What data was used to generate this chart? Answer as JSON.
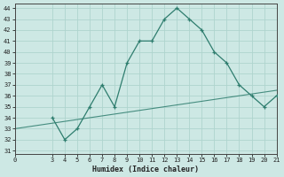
{
  "main_x": [
    3,
    4,
    5,
    6,
    7,
    8,
    9,
    10,
    11,
    12,
    13,
    14,
    15,
    16,
    17,
    18,
    19,
    20,
    21
  ],
  "main_y": [
    34,
    32,
    33,
    35,
    37,
    35,
    39,
    41,
    41,
    43,
    44,
    43,
    42,
    40,
    39,
    37,
    36,
    35,
    36
  ],
  "trend_x": [
    0,
    21
  ],
  "trend_y": [
    33.0,
    36.5
  ],
  "line_color": "#2e7d6e",
  "bg_color": "#cde8e4",
  "grid_color": "#afd4ce",
  "xlabel": "Humidex (Indice chaleur)",
  "ylim": [
    31,
    44
  ],
  "xlim": [
    0,
    21
  ],
  "yticks": [
    31,
    32,
    33,
    34,
    35,
    36,
    37,
    38,
    39,
    40,
    41,
    42,
    43,
    44
  ],
  "xticks": [
    0,
    3,
    4,
    5,
    6,
    7,
    8,
    9,
    10,
    11,
    12,
    13,
    14,
    15,
    16,
    17,
    18,
    19,
    20,
    21
  ]
}
